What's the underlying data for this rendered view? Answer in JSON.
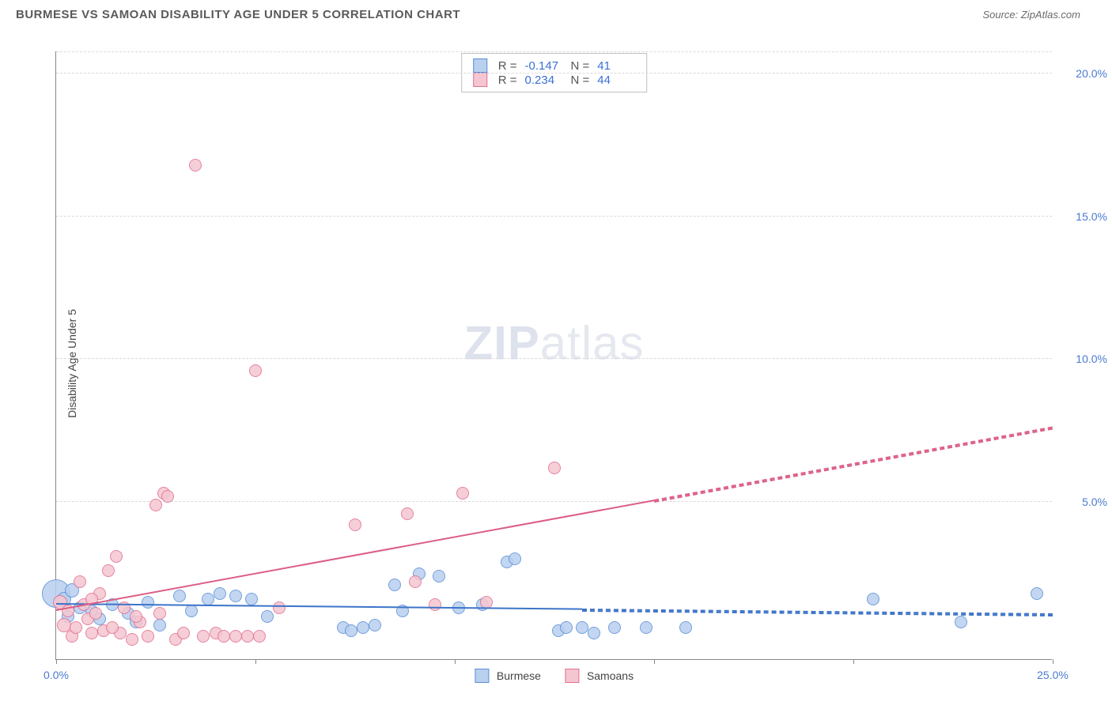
{
  "header": {
    "title": "BURMESE VS SAMOAN DISABILITY AGE UNDER 5 CORRELATION CHART",
    "source_prefix": "Source: ",
    "source_name": "ZipAtlas.com"
  },
  "chart": {
    "type": "scatter",
    "ylabel": "Disability Age Under 5",
    "xlim": [
      0,
      25
    ],
    "ylim": [
      -0.5,
      20.8
    ],
    "xtick_values": [
      0,
      5,
      10,
      15,
      20,
      25
    ],
    "xtick_labels": [
      "0.0%",
      "",
      "",
      "",
      "",
      "25.0%"
    ],
    "ytick_values": [
      5,
      10,
      15,
      20
    ],
    "ytick_labels": [
      "5.0%",
      "10.0%",
      "15.0%",
      "20.0%"
    ],
    "grid_color": "#d9d9d9",
    "background_color": "#ffffff",
    "axis_color": "#888888",
    "tick_label_color": "#4a7bd0",
    "marker_radius_base": 8,
    "series": [
      {
        "name": "Burmese",
        "fill": "#b9d0ef",
        "stroke": "#5a8fd6",
        "r_label": "R =",
        "r_value": "-0.147",
        "n_label": "N =",
        "n_value": "41",
        "trend": {
          "y0": 1.4,
          "y25": 1.05,
          "solid_end_x": 13.2,
          "color": "#3d74c9"
        },
        "points": [
          {
            "x": 0.0,
            "y": 1.8,
            "r": 18
          },
          {
            "x": 0.2,
            "y": 1.6,
            "r": 9
          },
          {
            "x": 0.3,
            "y": 1.0,
            "r": 8
          },
          {
            "x": 0.4,
            "y": 1.9,
            "r": 9
          },
          {
            "x": 0.6,
            "y": 1.3,
            "r": 8
          },
          {
            "x": 0.9,
            "y": 1.2,
            "r": 8
          },
          {
            "x": 1.1,
            "y": 0.9,
            "r": 8
          },
          {
            "x": 1.4,
            "y": 1.4,
            "r": 8
          },
          {
            "x": 1.8,
            "y": 1.1,
            "r": 8
          },
          {
            "x": 2.0,
            "y": 0.8,
            "r": 8
          },
          {
            "x": 2.3,
            "y": 1.5,
            "r": 8
          },
          {
            "x": 2.6,
            "y": 0.7,
            "r": 8
          },
          {
            "x": 3.1,
            "y": 1.7,
            "r": 8
          },
          {
            "x": 3.4,
            "y": 1.2,
            "r": 8
          },
          {
            "x": 3.8,
            "y": 1.6,
            "r": 8
          },
          {
            "x": 4.1,
            "y": 1.8,
            "r": 8
          },
          {
            "x": 4.5,
            "y": 1.7,
            "r": 8
          },
          {
            "x": 4.9,
            "y": 1.6,
            "r": 8
          },
          {
            "x": 5.3,
            "y": 1.0,
            "r": 8
          },
          {
            "x": 7.2,
            "y": 0.6,
            "r": 8
          },
          {
            "x": 7.4,
            "y": 0.5,
            "r": 8
          },
          {
            "x": 7.7,
            "y": 0.6,
            "r": 8
          },
          {
            "x": 8.0,
            "y": 0.7,
            "r": 8
          },
          {
            "x": 8.5,
            "y": 2.1,
            "r": 8
          },
          {
            "x": 8.7,
            "y": 1.2,
            "r": 8
          },
          {
            "x": 9.1,
            "y": 2.5,
            "r": 8
          },
          {
            "x": 9.6,
            "y": 2.4,
            "r": 8
          },
          {
            "x": 10.1,
            "y": 1.3,
            "r": 8
          },
          {
            "x": 10.7,
            "y": 1.4,
            "r": 8
          },
          {
            "x": 11.3,
            "y": 2.9,
            "r": 8
          },
          {
            "x": 11.5,
            "y": 3.0,
            "r": 8
          },
          {
            "x": 12.6,
            "y": 0.5,
            "r": 8
          },
          {
            "x": 12.8,
            "y": 0.6,
            "r": 8
          },
          {
            "x": 13.2,
            "y": 0.6,
            "r": 8
          },
          {
            "x": 13.5,
            "y": 0.4,
            "r": 8
          },
          {
            "x": 14.0,
            "y": 0.6,
            "r": 8
          },
          {
            "x": 14.8,
            "y": 0.6,
            "r": 8
          },
          {
            "x": 15.8,
            "y": 0.6,
            "r": 8
          },
          {
            "x": 20.5,
            "y": 1.6,
            "r": 8
          },
          {
            "x": 22.7,
            "y": 0.8,
            "r": 8
          },
          {
            "x": 24.6,
            "y": 1.8,
            "r": 8
          }
        ]
      },
      {
        "name": "Samoans",
        "fill": "#f5c6d1",
        "stroke": "#e16f8f",
        "r_label": "R =",
        "r_value": "0.234",
        "n_label": "N =",
        "n_value": "44",
        "trend": {
          "y0": 1.2,
          "y25": 7.6,
          "solid_end_x": 15.0,
          "color": "#dc5e85"
        },
        "points": [
          {
            "x": 0.1,
            "y": 1.5,
            "r": 9
          },
          {
            "x": 0.2,
            "y": 0.7,
            "r": 9
          },
          {
            "x": 0.3,
            "y": 1.2,
            "r": 8
          },
          {
            "x": 0.4,
            "y": 0.3,
            "r": 8
          },
          {
            "x": 0.5,
            "y": 0.6,
            "r": 8
          },
          {
            "x": 0.7,
            "y": 1.4,
            "r": 8
          },
          {
            "x": 0.8,
            "y": 0.9,
            "r": 8
          },
          {
            "x": 0.9,
            "y": 0.4,
            "r": 8
          },
          {
            "x": 1.0,
            "y": 1.1,
            "r": 8
          },
          {
            "x": 1.2,
            "y": 0.5,
            "r": 8
          },
          {
            "x": 1.3,
            "y": 2.6,
            "r": 8
          },
          {
            "x": 1.5,
            "y": 3.1,
            "r": 8
          },
          {
            "x": 1.6,
            "y": 0.4,
            "r": 8
          },
          {
            "x": 1.7,
            "y": 1.3,
            "r": 8
          },
          {
            "x": 1.9,
            "y": 0.2,
            "r": 8
          },
          {
            "x": 2.1,
            "y": 0.8,
            "r": 8
          },
          {
            "x": 2.3,
            "y": 0.3,
            "r": 8
          },
          {
            "x": 2.5,
            "y": 4.9,
            "r": 8
          },
          {
            "x": 2.6,
            "y": 1.1,
            "r": 8
          },
          {
            "x": 2.7,
            "y": 5.3,
            "r": 8
          },
          {
            "x": 2.8,
            "y": 5.2,
            "r": 8
          },
          {
            "x": 3.0,
            "y": 0.2,
            "r": 8
          },
          {
            "x": 3.2,
            "y": 0.4,
            "r": 8
          },
          {
            "x": 3.5,
            "y": 16.8,
            "r": 8
          },
          {
            "x": 3.7,
            "y": 0.3,
            "r": 8
          },
          {
            "x": 4.0,
            "y": 0.4,
            "r": 8
          },
          {
            "x": 4.2,
            "y": 0.3,
            "r": 8
          },
          {
            "x": 4.5,
            "y": 0.3,
            "r": 8
          },
          {
            "x": 4.8,
            "y": 0.3,
            "r": 8
          },
          {
            "x": 5.0,
            "y": 9.6,
            "r": 8
          },
          {
            "x": 5.1,
            "y": 0.3,
            "r": 8
          },
          {
            "x": 5.6,
            "y": 1.3,
            "r": 8
          },
          {
            "x": 7.5,
            "y": 4.2,
            "r": 8
          },
          {
            "x": 8.8,
            "y": 4.6,
            "r": 8
          },
          {
            "x": 9.0,
            "y": 2.2,
            "r": 8
          },
          {
            "x": 9.5,
            "y": 1.4,
            "r": 8
          },
          {
            "x": 10.2,
            "y": 5.3,
            "r": 8
          },
          {
            "x": 10.8,
            "y": 1.5,
            "r": 8
          },
          {
            "x": 12.5,
            "y": 6.2,
            "r": 8
          },
          {
            "x": 0.6,
            "y": 2.2,
            "r": 8
          },
          {
            "x": 1.1,
            "y": 1.8,
            "r": 8
          },
          {
            "x": 1.4,
            "y": 0.6,
            "r": 8
          },
          {
            "x": 2.0,
            "y": 1.0,
            "r": 8
          },
          {
            "x": 0.9,
            "y": 1.6,
            "r": 8
          }
        ]
      }
    ],
    "bottom_legend": [
      "Burmese",
      "Samoans"
    ],
    "watermark": {
      "zip": "ZIP",
      "atlas": "atlas"
    }
  }
}
